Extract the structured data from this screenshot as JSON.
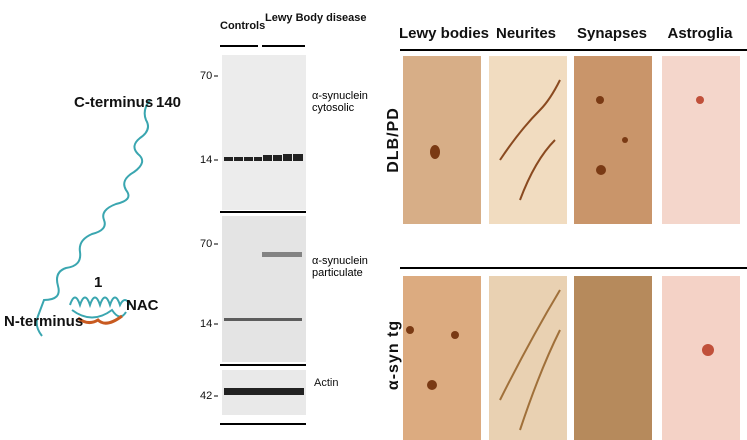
{
  "protein": {
    "c_terminus": "C-terminus",
    "end_residue": "140",
    "start_residue": "1",
    "n_terminus": "N-terminus",
    "nac": "NAC"
  },
  "blot": {
    "groups": [
      "Controls",
      "Lewy Body disease"
    ],
    "panels": [
      {
        "label": "α-synuclein cytosolic",
        "markers": [
          "70",
          "14"
        ]
      },
      {
        "label": "α-synuclein particulate",
        "markers": [
          "70",
          "14"
        ]
      },
      {
        "label": "Actin",
        "markers": [
          "42"
        ]
      }
    ]
  },
  "histology": {
    "columns": [
      "Lewy bodies",
      "Neurites",
      "Synapses",
      "Astroglia"
    ],
    "rows": [
      "DLB/PD",
      "α-syn tg"
    ]
  }
}
